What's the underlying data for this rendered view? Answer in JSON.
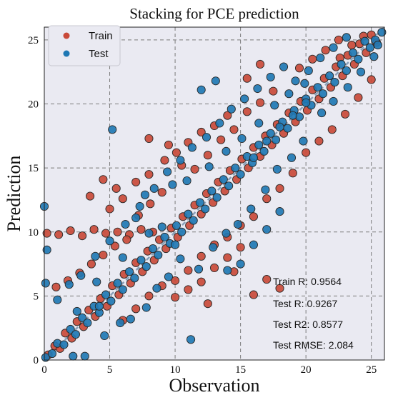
{
  "colors": {
    "train": "#c94a3a",
    "test": "#1f78b4",
    "plot_bg": "#eaeaf2",
    "grid": "#7a7a7a",
    "diagonal": "#8aa0b8",
    "marker_edge": "#2a2a2a"
  },
  "chart_data": {
    "type": "scatter",
    "title": "Stacking for PCE prediction",
    "xlabel": "Observation",
    "ylabel": "Prediction",
    "xlim": [
      0,
      26
    ],
    "ylim": [
      0,
      26
    ],
    "xticks": [
      "0",
      "5",
      "10",
      "15",
      "20",
      "25"
    ],
    "yticks": [
      "0",
      "5",
      "10",
      "15",
      "20",
      "25"
    ],
    "grid": true,
    "grid_style": "dashed",
    "legend_position": "top-left",
    "series": [
      {
        "name": "Train",
        "color": "#c94a3a"
      },
      {
        "name": "Test",
        "color": "#1f78b4"
      }
    ],
    "points_train": [
      [
        0.3,
        0.4
      ],
      [
        0.8,
        1.1
      ],
      [
        1.2,
        0.9
      ],
      [
        1.6,
        2.1
      ],
      [
        2.1,
        1.7
      ],
      [
        2.5,
        3.0
      ],
      [
        3.0,
        2.6
      ],
      [
        3.4,
        3.9
      ],
      [
        3.9,
        3.4
      ],
      [
        4.3,
        4.8
      ],
      [
        4.8,
        4.2
      ],
      [
        5.2,
        5.8
      ],
      [
        5.7,
        5.1
      ],
      [
        6.1,
        6.7
      ],
      [
        6.6,
        6.0
      ],
      [
        7.0,
        7.6
      ],
      [
        7.5,
        6.9
      ],
      [
        7.9,
        8.5
      ],
      [
        8.4,
        7.8
      ],
      [
        8.8,
        9.4
      ],
      [
        9.3,
        8.7
      ],
      [
        9.7,
        10.3
      ],
      [
        10.2,
        9.6
      ],
      [
        10.6,
        11.2
      ],
      [
        11.1,
        10.5
      ],
      [
        11.5,
        12.1
      ],
      [
        12.0,
        11.4
      ],
      [
        12.4,
        13.0
      ],
      [
        12.9,
        12.3
      ],
      [
        13.3,
        13.9
      ],
      [
        13.8,
        13.2
      ],
      [
        14.2,
        14.8
      ],
      [
        14.7,
        14.1
      ],
      [
        15.1,
        15.7
      ],
      [
        15.6,
        15.0
      ],
      [
        16.0,
        16.6
      ],
      [
        16.5,
        15.9
      ],
      [
        16.9,
        17.5
      ],
      [
        17.4,
        16.8
      ],
      [
        17.8,
        18.4
      ],
      [
        18.3,
        17.7
      ],
      [
        18.7,
        19.3
      ],
      [
        19.2,
        18.6
      ],
      [
        19.6,
        20.2
      ],
      [
        20.1,
        19.5
      ],
      [
        20.5,
        21.1
      ],
      [
        21.0,
        20.4
      ],
      [
        21.4,
        22.0
      ],
      [
        21.9,
        21.3
      ],
      [
        22.3,
        22.9
      ],
      [
        22.8,
        22.2
      ],
      [
        23.2,
        23.8
      ],
      [
        23.7,
        23.1
      ],
      [
        24.1,
        24.7
      ],
      [
        24.6,
        24.0
      ],
      [
        25.0,
        25.4
      ],
      [
        25.4,
        24.8
      ],
      [
        24.4,
        25.3
      ],
      [
        23.5,
        24.6
      ],
      [
        22.6,
        23.6
      ],
      [
        0.2,
        9.9
      ],
      [
        1.1,
        9.8
      ],
      [
        2.0,
        10.1
      ],
      [
        2.9,
        9.7
      ],
      [
        3.8,
        10.2
      ],
      [
        4.7,
        9.9
      ],
      [
        5.6,
        10.0
      ],
      [
        6.5,
        9.8
      ],
      [
        7.4,
        10.2
      ],
      [
        8.3,
        10.0
      ],
      [
        0.9,
        5.7
      ],
      [
        1.8,
        6.2
      ],
      [
        2.7,
        6.8
      ],
      [
        3.6,
        7.5
      ],
      [
        4.5,
        8.2
      ],
      [
        5.4,
        8.9
      ],
      [
        6.3,
        9.4
      ],
      [
        7.2,
        11.3
      ],
      [
        8.1,
        12.2
      ],
      [
        9.0,
        13.1
      ],
      [
        5.0,
        11.8
      ],
      [
        6.0,
        12.6
      ],
      [
        7.0,
        13.9
      ],
      [
        8.0,
        14.5
      ],
      [
        9.2,
        15.6
      ],
      [
        10.1,
        16.2
      ],
      [
        11.0,
        17.0
      ],
      [
        12.0,
        17.8
      ],
      [
        13.0,
        18.3
      ],
      [
        14.0,
        19.1
      ],
      [
        8.0,
        17.3
      ],
      [
        9.5,
        16.8
      ],
      [
        10.5,
        15.2
      ],
      [
        11.5,
        14.9
      ],
      [
        12.5,
        16.0
      ],
      [
        13.5,
        17.2
      ],
      [
        14.5,
        18.0
      ],
      [
        15.5,
        19.4
      ],
      [
        16.5,
        20.1
      ],
      [
        17.5,
        21.0
      ],
      [
        10.0,
        6.2
      ],
      [
        11.0,
        7.0
      ],
      [
        12.0,
        8.1
      ],
      [
        13.0,
        9.0
      ],
      [
        14.0,
        9.6
      ],
      [
        15.0,
        10.5
      ],
      [
        16.0,
        11.2
      ],
      [
        17.0,
        12.6
      ],
      [
        18.0,
        13.4
      ],
      [
        19.0,
        14.6
      ],
      [
        6.0,
        3.1
      ],
      [
        7.0,
        4.0
      ],
      [
        8.0,
        5.0
      ],
      [
        9.0,
        5.8
      ],
      [
        10.0,
        4.9
      ],
      [
        11.0,
        5.5
      ],
      [
        12.0,
        6.1
      ],
      [
        13.0,
        7.2
      ],
      [
        14.0,
        8.0
      ],
      [
        15.0,
        8.8
      ],
      [
        20.0,
        16.2
      ],
      [
        21.0,
        17.1
      ],
      [
        22.0,
        18.0
      ],
      [
        23.0,
        19.2
      ],
      [
        24.0,
        20.5
      ],
      [
        25.0,
        21.9
      ],
      [
        19.5,
        22.8
      ],
      [
        20.5,
        23.5
      ],
      [
        21.5,
        24.2
      ],
      [
        22.5,
        25.0
      ],
      [
        16.0,
        5.1
      ],
      [
        17.0,
        6.3
      ],
      [
        18.0,
        5.6
      ],
      [
        14.5,
        6.9
      ],
      [
        12.5,
        4.4
      ],
      [
        3.5,
        12.8
      ],
      [
        4.5,
        14.1
      ],
      [
        5.5,
        13.4
      ],
      [
        15.5,
        22.0
      ],
      [
        16.5,
        23.1
      ]
    ],
    "points_test": [
      [
        0.0,
        12.0
      ],
      [
        0.1,
        0.2
      ],
      [
        0.6,
        0.5
      ],
      [
        1.0,
        1.3
      ],
      [
        1.5,
        1.2
      ],
      [
        2.0,
        2.4
      ],
      [
        2.4,
        2.0
      ],
      [
        2.9,
        3.3
      ],
      [
        3.3,
        2.9
      ],
      [
        3.8,
        4.2
      ],
      [
        4.2,
        3.7
      ],
      [
        4.7,
        5.1
      ],
      [
        5.1,
        4.6
      ],
      [
        5.6,
        6.0
      ],
      [
        6.0,
        5.5
      ],
      [
        6.5,
        6.9
      ],
      [
        6.9,
        6.4
      ],
      [
        7.4,
        7.8
      ],
      [
        7.8,
        7.3
      ],
      [
        8.3,
        8.7
      ],
      [
        8.7,
        8.2
      ],
      [
        9.2,
        9.6
      ],
      [
        9.6,
        9.1
      ],
      [
        10.1,
        10.5
      ],
      [
        10.5,
        10.0
      ],
      [
        11.0,
        11.4
      ],
      [
        11.4,
        10.9
      ],
      [
        11.9,
        12.3
      ],
      [
        12.3,
        11.8
      ],
      [
        12.8,
        13.2
      ],
      [
        13.2,
        12.7
      ],
      [
        13.7,
        14.1
      ],
      [
        14.1,
        13.6
      ],
      [
        14.6,
        15.0
      ],
      [
        15.0,
        14.5
      ],
      [
        15.5,
        15.9
      ],
      [
        15.9,
        15.4
      ],
      [
        16.4,
        16.8
      ],
      [
        16.8,
        16.3
      ],
      [
        17.3,
        17.7
      ],
      [
        17.7,
        17.2
      ],
      [
        18.2,
        18.6
      ],
      [
        18.6,
        18.1
      ],
      [
        19.1,
        19.5
      ],
      [
        19.5,
        19.0
      ],
      [
        20.0,
        20.4
      ],
      [
        20.4,
        19.9
      ],
      [
        20.9,
        21.3
      ],
      [
        21.3,
        20.8
      ],
      [
        21.8,
        22.2
      ],
      [
        22.2,
        21.7
      ],
      [
        22.7,
        23.1
      ],
      [
        23.1,
        22.6
      ],
      [
        23.6,
        24.0
      ],
      [
        24.0,
        23.5
      ],
      [
        24.5,
        24.9
      ],
      [
        24.9,
        24.4
      ],
      [
        25.3,
        25.0
      ],
      [
        25.8,
        25.6
      ],
      [
        25.5,
        24.6
      ],
      [
        2.2,
        0.3
      ],
      [
        3.1,
        0.3
      ],
      [
        4.2,
        4.2
      ],
      [
        4.6,
        1.9
      ],
      [
        5.8,
        2.9
      ],
      [
        6.6,
        3.2
      ],
      [
        7.8,
        4.1
      ],
      [
        8.6,
        5.6
      ],
      [
        9.5,
        6.5
      ],
      [
        10.4,
        7.9
      ],
      [
        11.2,
        1.6
      ],
      [
        11.8,
        7.1
      ],
      [
        12.9,
        8.8
      ],
      [
        13.9,
        9.9
      ],
      [
        14.8,
        10.6
      ],
      [
        15.8,
        11.8
      ],
      [
        16.9,
        13.3
      ],
      [
        17.8,
        14.9
      ],
      [
        18.9,
        15.8
      ],
      [
        19.8,
        17.1
      ],
      [
        0.1,
        6.0
      ],
      [
        0.2,
        8.6
      ],
      [
        1.0,
        4.7
      ],
      [
        1.9,
        5.9
      ],
      [
        2.8,
        6.6
      ],
      [
        3.9,
        8.1
      ],
      [
        5.0,
        9.3
      ],
      [
        6.2,
        10.6
      ],
      [
        7.3,
        12.0
      ],
      [
        8.4,
        13.4
      ],
      [
        9.4,
        14.7
      ],
      [
        10.4,
        15.6
      ],
      [
        11.3,
        16.6
      ],
      [
        12.4,
        17.4
      ],
      [
        13.4,
        18.5
      ],
      [
        14.3,
        19.6
      ],
      [
        15.3,
        20.4
      ],
      [
        16.3,
        21.2
      ],
      [
        17.3,
        22.1
      ],
      [
        18.3,
        22.9
      ],
      [
        5.2,
        18.0
      ],
      [
        12.0,
        21.1
      ],
      [
        13.1,
        21.8
      ],
      [
        9.0,
        10.4
      ],
      [
        10.0,
        9.0
      ],
      [
        8.0,
        9.9
      ],
      [
        7.0,
        11.1
      ],
      [
        6.0,
        8.0
      ],
      [
        4.0,
        6.1
      ],
      [
        2.5,
        3.8
      ],
      [
        21.2,
        19.3
      ],
      [
        22.1,
        20.2
      ],
      [
        23.2,
        21.3
      ],
      [
        24.2,
        22.5
      ],
      [
        25.2,
        23.7
      ],
      [
        19.2,
        21.8
      ],
      [
        20.2,
        22.6
      ],
      [
        21.1,
        23.6
      ],
      [
        22.1,
        24.4
      ],
      [
        23.1,
        25.2
      ],
      [
        14.0,
        7.0
      ],
      [
        15.0,
        7.5
      ],
      [
        16.0,
        9.0
      ],
      [
        17.0,
        10.2
      ],
      [
        18.0,
        11.6
      ],
      [
        16.0,
        15.8
      ],
      [
        17.0,
        17.1
      ],
      [
        18.0,
        18.2
      ],
      [
        19.0,
        19.1
      ],
      [
        20.0,
        20.1
      ],
      [
        7.7,
        12.9
      ],
      [
        9.8,
        13.7
      ],
      [
        10.9,
        14.0
      ],
      [
        12.6,
        15.1
      ],
      [
        13.9,
        16.3
      ],
      [
        15.1,
        17.3
      ],
      [
        16.4,
        18.5
      ],
      [
        17.6,
        19.9
      ],
      [
        18.7,
        20.8
      ],
      [
        19.9,
        21.6
      ]
    ],
    "annotations": [
      "Train R: 0.9564",
      "Test R: 0.9267",
      "Test R2: 0.8577",
      "Test RMSE: 2.084"
    ]
  }
}
